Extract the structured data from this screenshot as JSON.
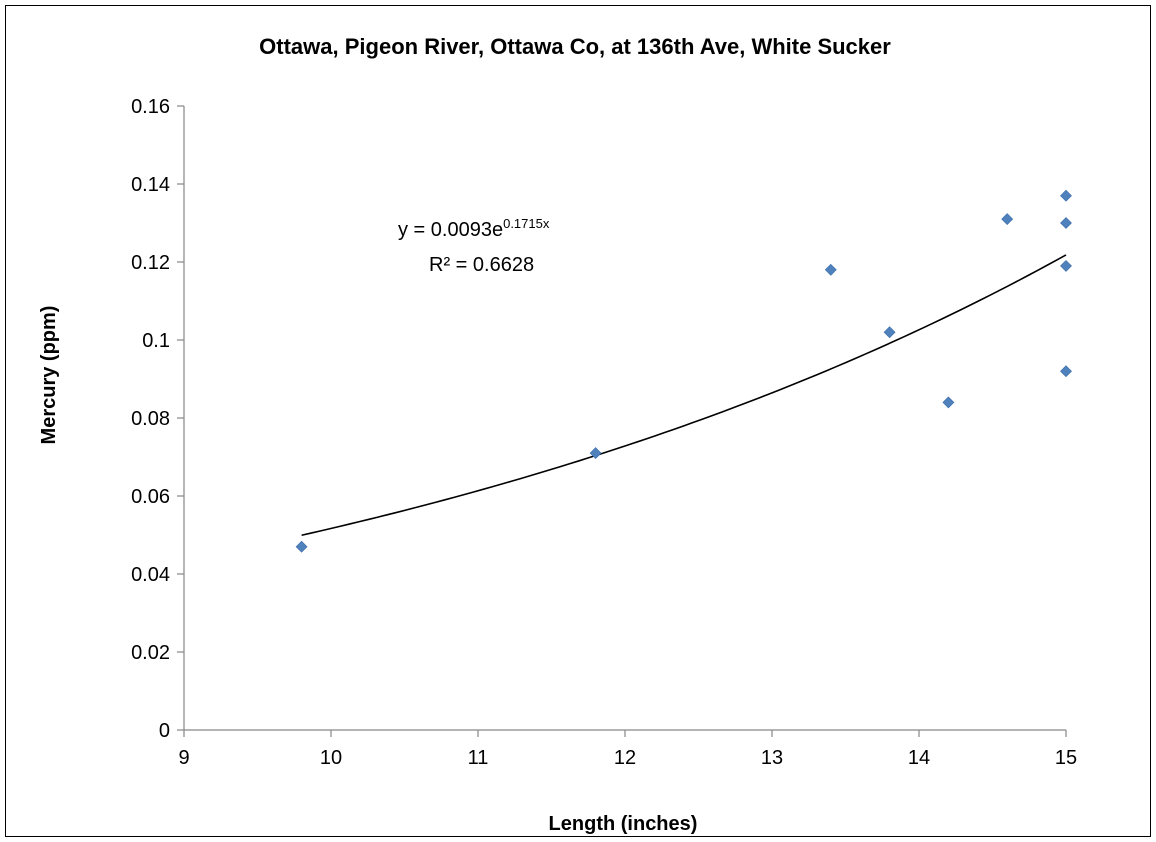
{
  "chart_data": {
    "type": "scatter",
    "title": "Ottawa, Pigeon River, Ottawa Co, at 136th Ave, White Sucker",
    "xlabel": "Length (inches)",
    "ylabel": "Mercury (ppm)",
    "xlim": [
      9,
      15
    ],
    "ylim": [
      0,
      0.16
    ],
    "xticks": [
      "9",
      "10",
      "11",
      "12",
      "13",
      "14",
      "15"
    ],
    "yticks": [
      "0",
      "0.02",
      "0.04",
      "0.06",
      "0.08",
      "0.1",
      "0.12",
      "0.14",
      "0.16"
    ],
    "grid": false,
    "legend": "none",
    "series": [
      {
        "color": "#4F81BD",
        "marker": "diamond",
        "points": [
          {
            "x": 9.8,
            "y": 0.047
          },
          {
            "x": 11.8,
            "y": 0.071
          },
          {
            "x": 13.4,
            "y": 0.118
          },
          {
            "x": 13.8,
            "y": 0.102
          },
          {
            "x": 14.2,
            "y": 0.084
          },
          {
            "x": 14.6,
            "y": 0.131
          },
          {
            "x": 15.0,
            "y": 0.137
          },
          {
            "x": 15.0,
            "y": 0.13
          },
          {
            "x": 15.0,
            "y": 0.119
          },
          {
            "x": 15.0,
            "y": 0.092
          }
        ]
      }
    ],
    "trendline": {
      "type": "exponential",
      "a": 0.0093,
      "b": 0.1715,
      "x_range": [
        9.8,
        15
      ],
      "color": "#000000",
      "equation_prefix": "y = 0.0093e",
      "equation_exponent": "0.1715x",
      "r_squared_label": "R² = 0.6628"
    }
  }
}
